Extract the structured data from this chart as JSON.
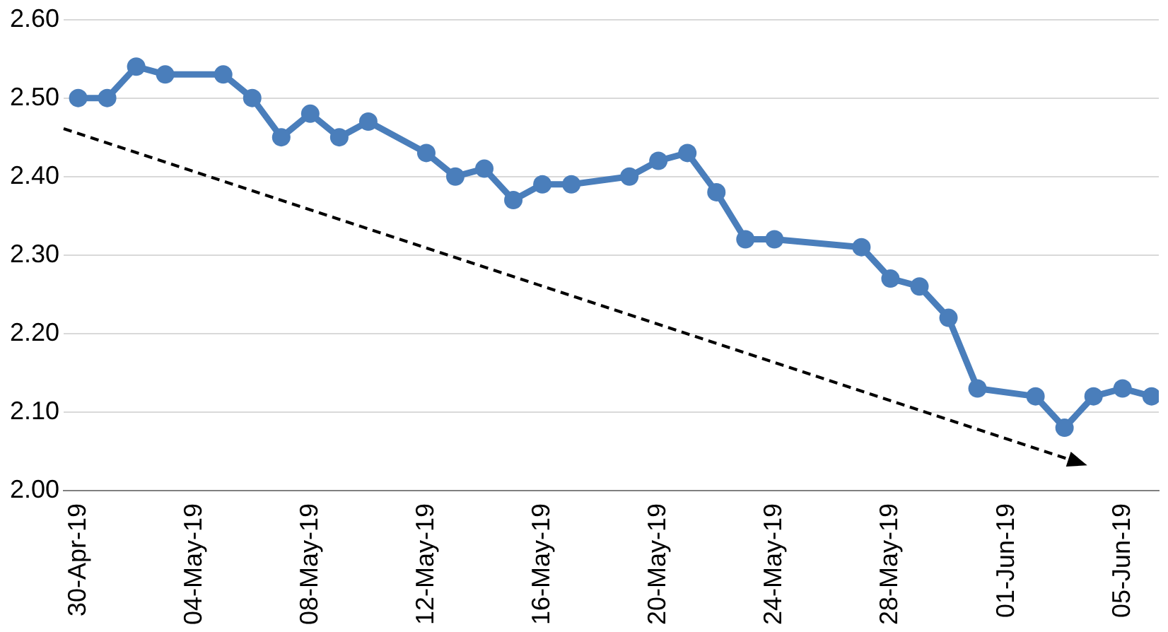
{
  "chart_data": {
    "type": "line",
    "x": [
      "--04-30",
      "--05-01",
      "--05-02",
      "--05-03",
      "--05-05",
      "--05-06",
      "--05-07",
      "--05-08",
      "--05-09",
      "--05-10",
      "--05-12",
      "--05-13",
      "--05-14",
      "--05-15",
      "--05-16",
      "--05-17",
      "--05-19",
      "--05-20",
      "--05-21",
      "--05-22",
      "--05-23",
      "--05-24",
      "--05-27",
      "--05-28",
      "--05-29",
      "--05-30",
      "--05-31",
      "--06-02",
      "--06-03",
      "--06-04",
      "--06-05",
      "--06-06"
    ],
    "series": [
      {
        "color": "#4a7ebb",
        "marker": "circle",
        "line_style": "solid",
        "values": [
          2.5,
          2.5,
          2.54,
          2.53,
          2.53,
          2.5,
          2.45,
          2.48,
          2.45,
          2.47,
          2.43,
          2.4,
          2.41,
          2.37,
          2.39,
          2.39,
          2.4,
          2.42,
          2.43,
          2.38,
          2.32,
          2.32,
          2.31,
          2.27,
          2.26,
          2.22,
          2.13,
          2.12,
          2.08,
          2.12,
          2.13,
          2.12
        ]
      }
    ],
    "xlim": [
      "--04-29T12:00",
      "--06-06T06:00"
    ],
    "xticks": [
      {
        "value": "--04-30",
        "label": "30-Apr-19"
      },
      {
        "value": "--05-04",
        "label": "04-May-19"
      },
      {
        "value": "--05-08",
        "label": "08-May-19"
      },
      {
        "value": "--05-12",
        "label": "12-May-19"
      },
      {
        "value": "--05-16",
        "label": "16-May-19"
      },
      {
        "value": "--05-20",
        "label": "20-May-19"
      },
      {
        "value": "--05-24",
        "label": "24-May-19"
      },
      {
        "value": "--05-28",
        "label": "28-May-19"
      },
      {
        "value": "--06-01",
        "label": "01-Jun-19"
      },
      {
        "value": "--06-05",
        "label": "05-Jun-19"
      }
    ],
    "ylim": [
      2.0,
      2.6
    ],
    "yticks": [
      {
        "value": 2.0,
        "label": "2.00"
      },
      {
        "value": 2.1,
        "label": "2.10"
      },
      {
        "value": 2.2,
        "label": "2.20"
      },
      {
        "value": 2.3,
        "label": "2.30"
      },
      {
        "value": 2.4,
        "label": "2.40"
      },
      {
        "value": 2.5,
        "label": "2.50"
      },
      {
        "value": 2.6,
        "label": "2.60"
      }
    ],
    "grid": "y",
    "legend": false
  }
}
